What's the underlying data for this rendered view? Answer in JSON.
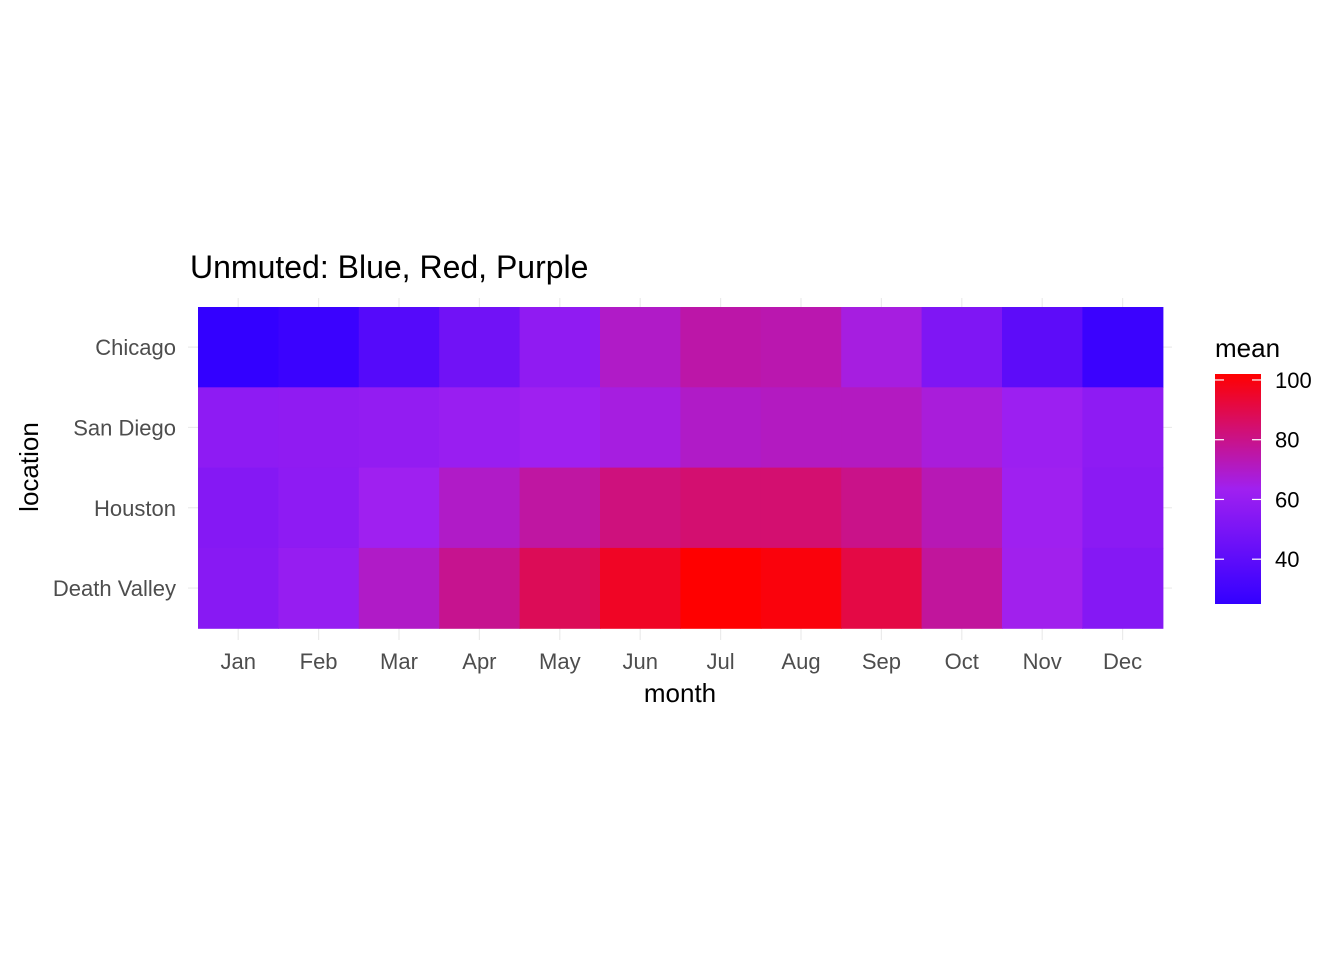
{
  "chart_data": {
    "type": "heatmap",
    "title": "Unmuted: Blue, Red, Purple",
    "xlabel": "month",
    "ylabel": "location",
    "x_categories": [
      "Jan",
      "Feb",
      "Mar",
      "Apr",
      "May",
      "Jun",
      "Jul",
      "Aug",
      "Sep",
      "Oct",
      "Nov",
      "Dec"
    ],
    "y_categories": [
      "Chicago",
      "San Diego",
      "Houston",
      "Death Valley"
    ],
    "values": [
      [
        25,
        28,
        37,
        47,
        58,
        70,
        75,
        74,
        66,
        52,
        40,
        28
      ],
      [
        57,
        58,
        59,
        61,
        63,
        66,
        70,
        71,
        71,
        67,
        62,
        57
      ],
      [
        54,
        57,
        63,
        70,
        76,
        82,
        84,
        84,
        80,
        73,
        63,
        56
      ],
      [
        55,
        60,
        70,
        79,
        88,
        96,
        102,
        100,
        91,
        77,
        64,
        54
      ]
    ],
    "color_scale": {
      "low": "#3300ff",
      "mid": "#a020f0",
      "high": "#ff0000",
      "min": 25,
      "max": 102
    },
    "legend": {
      "title": "mean",
      "ticks": [
        40,
        60,
        80,
        100
      ],
      "position": "right"
    },
    "grid": true
  }
}
